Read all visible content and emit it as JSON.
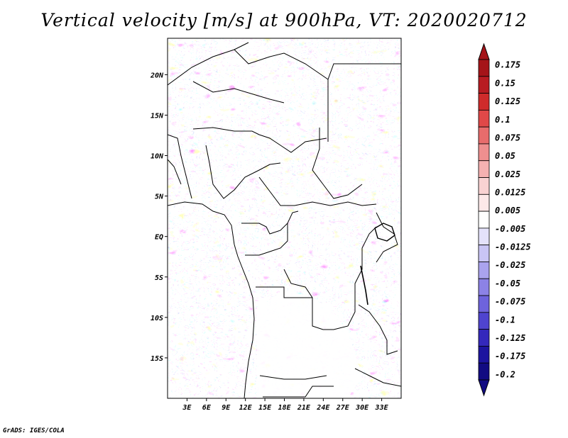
{
  "title": "Vertical velocity [m/s] at 900hPa, VT: 2020020712",
  "footer": "GrADS: IGES/COLA",
  "map": {
    "lon_range": [
      0,
      36
    ],
    "lat_range": [
      -20,
      24.5
    ],
    "lon_ticks": [
      {
        "value": 3,
        "label": "3E"
      },
      {
        "value": 6,
        "label": "6E"
      },
      {
        "value": 9,
        "label": "9E"
      },
      {
        "value": 12,
        "label": "12E"
      },
      {
        "value": 15,
        "label": "15E"
      },
      {
        "value": 18,
        "label": "18E"
      },
      {
        "value": 21,
        "label": "21E"
      },
      {
        "value": 24,
        "label": "24E"
      },
      {
        "value": 27,
        "label": "27E"
      },
      {
        "value": 30,
        "label": "30E"
      },
      {
        "value": 33,
        "label": "33E"
      }
    ],
    "lat_ticks": [
      {
        "value": 20,
        "label": "20N"
      },
      {
        "value": 15,
        "label": "15N"
      },
      {
        "value": 10,
        "label": "10N"
      },
      {
        "value": 5,
        "label": "5N"
      },
      {
        "value": 0,
        "label": "EQ"
      },
      {
        "value": -5,
        "label": "5S"
      },
      {
        "value": -10,
        "label": "10S"
      },
      {
        "value": -15,
        "label": "15S"
      }
    ]
  },
  "colorbar": {
    "labels": [
      "0.175",
      "0.15",
      "0.125",
      "0.1",
      "0.075",
      "0.05",
      "0.025",
      "0.0125",
      "0.005",
      "-0.005",
      "-0.0125",
      "-0.025",
      "-0.05",
      "-0.075",
      "-0.1",
      "-0.125",
      "-0.175",
      "-0.2"
    ],
    "colors": [
      "#a51419",
      "#b81c22",
      "#cf2b2b",
      "#e04848",
      "#e86c6c",
      "#ef8f8f",
      "#f5b1b1",
      "#f9d2d2",
      "#fde9e9",
      "#ffffff",
      "#e4e2fb",
      "#c9c5f5",
      "#aaa3ee",
      "#8c82e6",
      "#6e63dc",
      "#4f44cf",
      "#3428bc",
      "#1d149f",
      "#120b82"
    ],
    "top_color": "#a51419",
    "bottom_color": "#120b82"
  }
}
